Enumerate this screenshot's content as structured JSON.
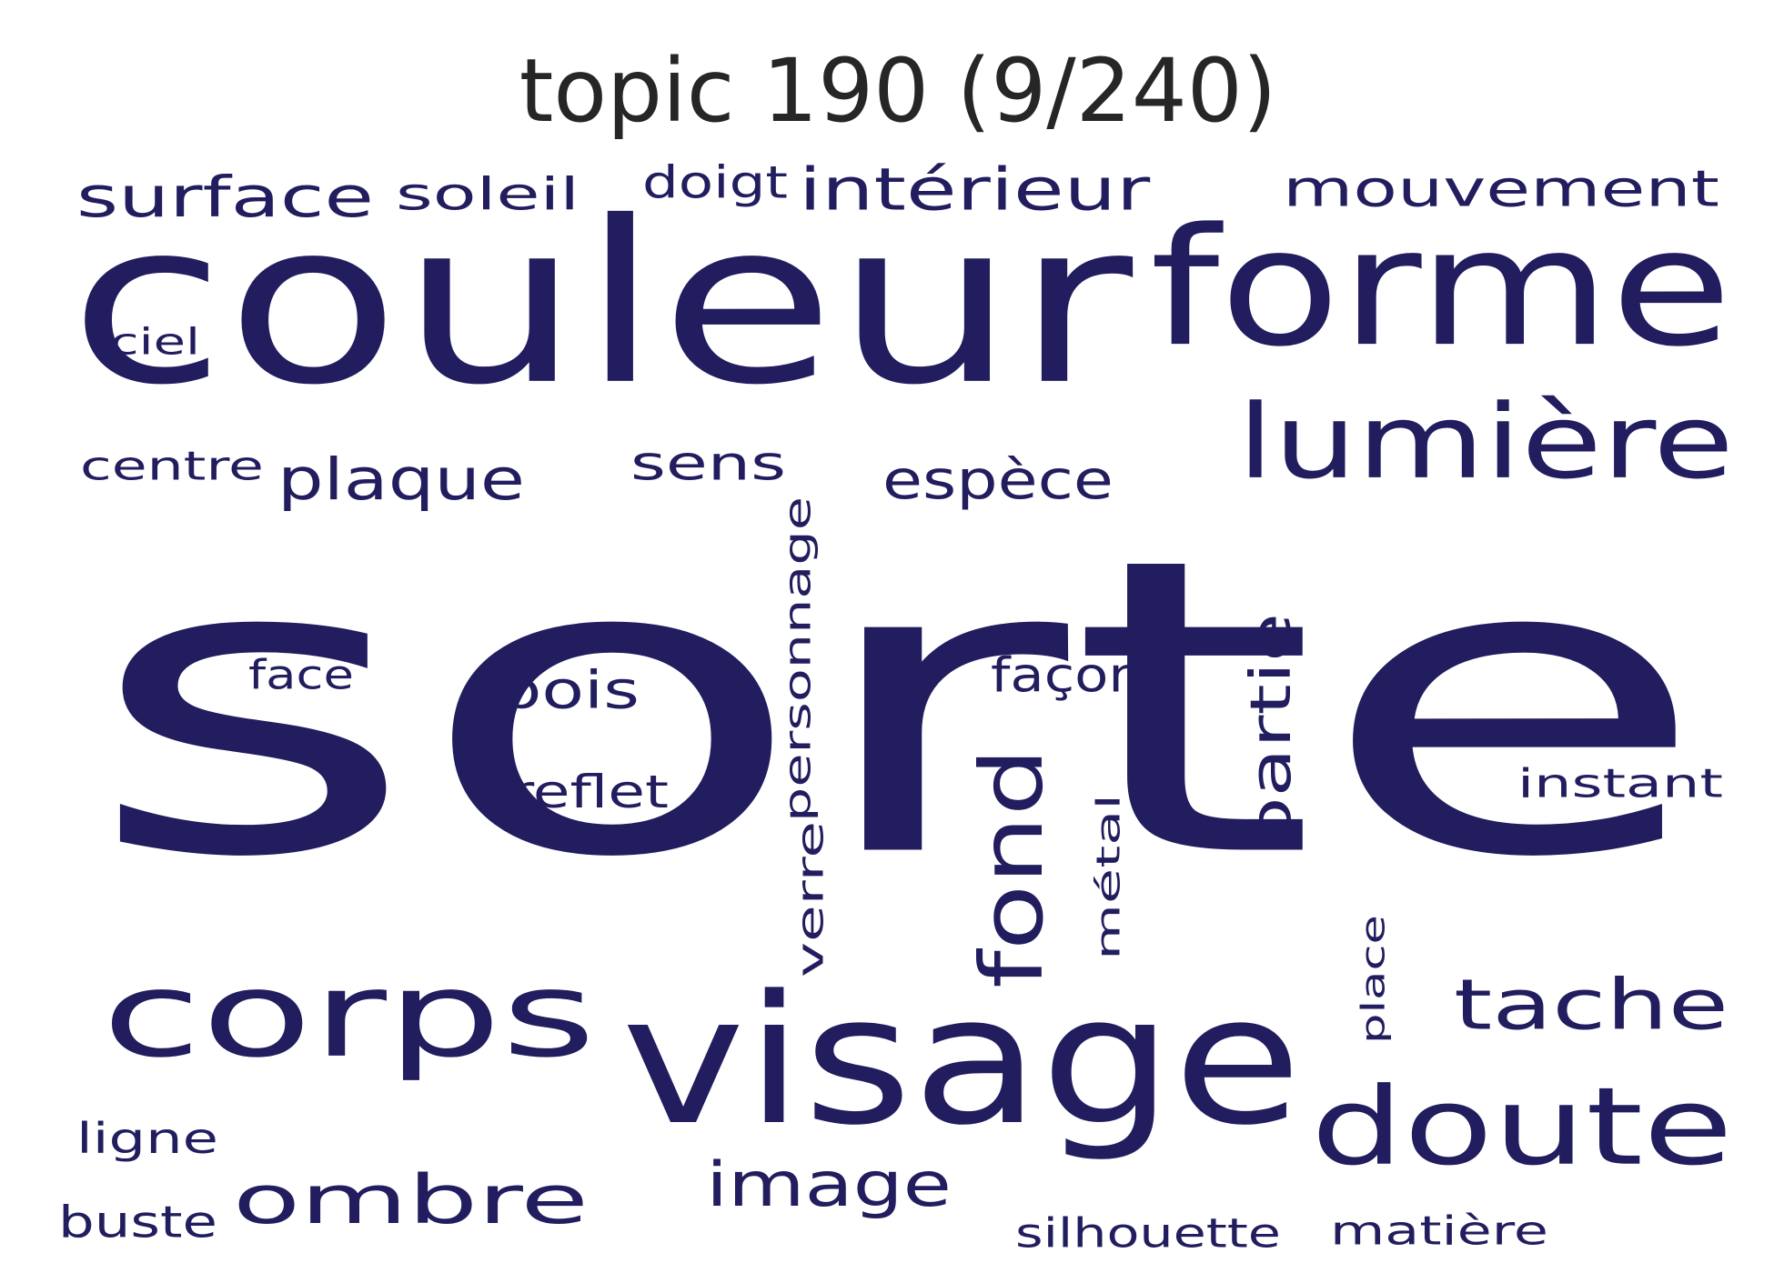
{
  "title": "topic 190 (9/240)",
  "colors": {
    "word": "#211d5e",
    "title": "#262626",
    "background": "#ffffff"
  },
  "words": [
    {
      "text": "sorte",
      "orientation": "horizontal"
    },
    {
      "text": "couleur",
      "orientation": "horizontal"
    },
    {
      "text": "forme",
      "orientation": "horizontal"
    },
    {
      "text": "visage",
      "orientation": "horizontal"
    },
    {
      "text": "lumière",
      "orientation": "horizontal"
    },
    {
      "text": "corps",
      "orientation": "horizontal"
    },
    {
      "text": "doute",
      "orientation": "horizontal"
    },
    {
      "text": "fond",
      "orientation": "vertical"
    },
    {
      "text": "ombre",
      "orientation": "horizontal"
    },
    {
      "text": "tache",
      "orientation": "horizontal"
    },
    {
      "text": "partie",
      "orientation": "vertical"
    },
    {
      "text": "mouvement",
      "orientation": "horizontal"
    },
    {
      "text": "intérieur",
      "orientation": "horizontal"
    },
    {
      "text": "surface",
      "orientation": "horizontal"
    },
    {
      "text": "image",
      "orientation": "horizontal"
    },
    {
      "text": "plaque",
      "orientation": "horizontal"
    },
    {
      "text": "espèce",
      "orientation": "horizontal"
    },
    {
      "text": "personnage",
      "orientation": "vertical"
    },
    {
      "text": "bois",
      "orientation": "horizontal"
    },
    {
      "text": "soleil",
      "orientation": "horizontal"
    },
    {
      "text": "sens",
      "orientation": "horizontal"
    },
    {
      "text": "reflet",
      "orientation": "horizontal"
    },
    {
      "text": "façon",
      "orientation": "horizontal"
    },
    {
      "text": "instant",
      "orientation": "horizontal"
    },
    {
      "text": "métal",
      "orientation": "vertical"
    },
    {
      "text": "centre",
      "orientation": "horizontal"
    },
    {
      "text": "silhouette",
      "orientation": "horizontal"
    },
    {
      "text": "matière",
      "orientation": "horizontal"
    },
    {
      "text": "doigt",
      "orientation": "horizontal"
    },
    {
      "text": "ligne",
      "orientation": "horizontal"
    },
    {
      "text": "buste",
      "orientation": "horizontal"
    },
    {
      "text": "face",
      "orientation": "horizontal"
    },
    {
      "text": "verre",
      "orientation": "vertical"
    },
    {
      "text": "place",
      "orientation": "vertical"
    },
    {
      "text": "ciel",
      "orientation": "horizontal"
    }
  ]
}
